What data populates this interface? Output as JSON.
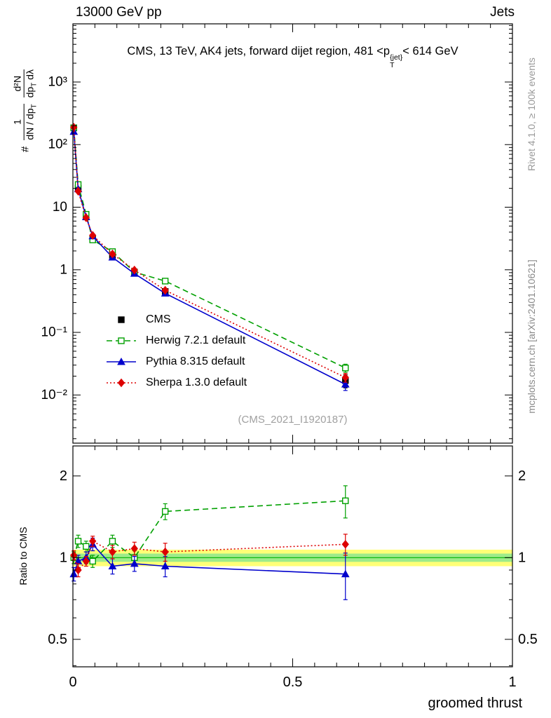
{
  "header": {
    "left": "13000 GeV pp",
    "right": "Jets"
  },
  "main_panel": {
    "title": {
      "prefix": "CMS, 13 TeV, AK4 jets, forward dijet region, 481 <p",
      "sup": "{jet}",
      "sub": "T",
      "suffix": "< 614 GeV"
    },
    "ylabel": {
      "hash": "#",
      "frac1_num": "1",
      "frac1_den": "dN / dp",
      "frac1_den_sub": "T",
      "frac2_num": "d²N",
      "frac2_den": "dp",
      "frac2_den_sub": "T",
      "frac2_den_tail": " dλ"
    },
    "watermark": "(CMS_2021_I1920187)"
  },
  "ratio_panel": {
    "ylabel": "Ratio to CMS"
  },
  "side_notes": {
    "top": "Rivet 4.1.0, ≥ 100k events",
    "bottom": "mcplots.cern.ch [arXiv:2401.10621]"
  },
  "chart_data": {
    "type": "line",
    "title": "CMS, 13 TeV, AK4 jets, forward dijet region, 481 < p_T^{jet} < 614 GeV",
    "xlabel": "groomed thrust",
    "ylabel": "1/(dN/dp_T) d²N/(dp_T dλ)",
    "ratio_ylabel": "Ratio to CMS",
    "x_range": [
      0,
      1
    ],
    "x_minor_step": 0.05,
    "xticks": [
      {
        "v": 0,
        "label": "0"
      },
      {
        "v": 0.5,
        "label": "0.5"
      },
      {
        "v": 1,
        "label": "1"
      }
    ],
    "main": {
      "y_scale": "log",
      "y_range": [
        0.0017,
        8500
      ],
      "yticks": [
        {
          "v": 1000,
          "label": "10³"
        },
        {
          "v": 100,
          "label": "10²"
        },
        {
          "v": 10,
          "label": "10"
        },
        {
          "v": 1,
          "label": "1"
        },
        {
          "v": 0.1,
          "label": "10⁻¹"
        },
        {
          "v": 0.01,
          "label": "10⁻²"
        }
      ]
    },
    "ratio": {
      "y_scale": "log",
      "y_range": [
        0.396,
        2.58
      ],
      "yticks": [
        {
          "v": 2,
          "label": "2"
        },
        {
          "v": 1,
          "label": "1"
        },
        {
          "v": 0.5,
          "label": "0.5"
        }
      ],
      "band_yellow": [
        0.93,
        1.07
      ],
      "band_green": [
        0.965,
        1.035
      ],
      "band_colors": {
        "yellow": "#ffff55",
        "green": "#8de88d",
        "unity_line": "#00b400"
      }
    },
    "x": [
      0.002,
      0.012,
      0.03,
      0.045,
      0.09,
      0.14,
      0.21,
      0.62
    ],
    "series": [
      {
        "name": "CMS",
        "color": "#000000",
        "marker": "square",
        "fill": "filled",
        "line": "none",
        "values": [
          185,
          20,
          7.0,
          3.1,
          1.7,
          0.92,
          0.45,
          0.017
        ],
        "errors": [
          14,
          1.6,
          0.55,
          0.28,
          0.13,
          0.08,
          0.05,
          0.004
        ]
      },
      {
        "name": "Herwig 7.2.1 default",
        "color": "#00a000",
        "marker": "square",
        "fill": "open",
        "line": "dashed",
        "values": [
          185,
          23,
          7.7,
          3.0,
          1.95,
          0.92,
          0.66,
          0.027
        ],
        "errors": [
          8,
          1.0,
          0.3,
          0.15,
          0.09,
          0.05,
          0.04,
          0.004
        ],
        "ratio": [
          1.0,
          1.15,
          1.1,
          0.97,
          1.15,
          1.0,
          1.48,
          1.62
        ],
        "ratio_errors": [
          0.05,
          0.06,
          0.05,
          0.05,
          0.06,
          0.06,
          0.1,
          0.22
        ]
      },
      {
        "name": "Pythia 8.315 default",
        "color": "#0000cc",
        "marker": "triangle",
        "fill": "filled",
        "line": "solid",
        "values": [
          161,
          19.5,
          7.0,
          3.45,
          1.58,
          0.87,
          0.42,
          0.0148
        ],
        "errors": [
          7,
          0.9,
          0.3,
          0.15,
          0.08,
          0.05,
          0.03,
          0.003
        ],
        "ratio": [
          0.87,
          0.97,
          1.0,
          1.12,
          0.93,
          0.95,
          0.93,
          0.87
        ],
        "ratio_errors": [
          0.05,
          0.05,
          0.05,
          0.06,
          0.06,
          0.06,
          0.08,
          0.17
        ]
      },
      {
        "name": "Sherpa 1.3.0 default",
        "color": "#dd0000",
        "marker": "diamond",
        "fill": "filled",
        "line": "dotted",
        "values": [
          189,
          18,
          6.8,
          3.55,
          1.79,
          0.99,
          0.47,
          0.019
        ],
        "errors": [
          8,
          0.9,
          0.3,
          0.16,
          0.09,
          0.05,
          0.03,
          0.003
        ],
        "ratio": [
          1.02,
          0.9,
          0.97,
          1.15,
          1.05,
          1.08,
          1.05,
          1.12
        ],
        "ratio_errors": [
          0.04,
          0.05,
          0.04,
          0.05,
          0.06,
          0.06,
          0.08,
          0.1
        ]
      }
    ]
  }
}
